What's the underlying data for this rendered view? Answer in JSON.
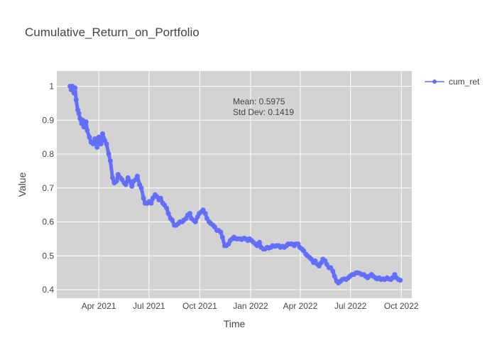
{
  "chart_data": {
    "type": "line",
    "title": "Cumulative_Return_on_Portfolio",
    "xlabel": "Time",
    "ylabel": "Value",
    "xlim": [
      "2021-01-15",
      "2022-10-20"
    ],
    "ylim": [
      0.375,
      1.045
    ],
    "x_ticks": [
      {
        "date": "2021-04-01",
        "label": "Apr 2021"
      },
      {
        "date": "2021-07-01",
        "label": "Jul 2021"
      },
      {
        "date": "2021-10-01",
        "label": "Oct 2021"
      },
      {
        "date": "2022-01-01",
        "label": "Jan 2022"
      },
      {
        "date": "2022-04-01",
        "label": "Apr 2022"
      },
      {
        "date": "2022-07-01",
        "label": "Jul 2022"
      },
      {
        "date": "2022-10-01",
        "label": "Oct 2022"
      }
    ],
    "y_ticks": [
      {
        "value": 0.4,
        "label": "0.4"
      },
      {
        "value": 0.5,
        "label": "0.5"
      },
      {
        "value": 0.6,
        "label": "0.6"
      },
      {
        "value": 0.7,
        "label": "0.7"
      },
      {
        "value": 0.8,
        "label": "0.8"
      },
      {
        "value": 0.9,
        "label": "0.9"
      },
      {
        "value": 1.0,
        "label": "1"
      }
    ],
    "grid": true,
    "legend_position": "top-right",
    "annotations": {
      "mean": "Mean: 0.5975",
      "std": "Std Dev: 0.1419"
    },
    "colors": {
      "series": "#636efa",
      "plot_bg": "#d3d3d3",
      "grid": "#ffffff"
    },
    "series": [
      {
        "name": "cum_ret",
        "x": [
          "2021-02-08",
          "2021-02-10",
          "2021-02-12",
          "2021-02-15",
          "2021-02-17",
          "2021-02-19",
          "2021-02-22",
          "2021-02-24",
          "2021-02-26",
          "2021-03-01",
          "2021-03-03",
          "2021-03-05",
          "2021-03-09",
          "2021-03-11",
          "2021-03-15",
          "2021-03-18",
          "2021-03-22",
          "2021-03-25",
          "2021-03-29",
          "2021-04-01",
          "2021-04-05",
          "2021-04-08",
          "2021-04-12",
          "2021-04-15",
          "2021-04-19",
          "2021-04-22",
          "2021-04-26",
          "2021-04-29",
          "2021-05-03",
          "2021-05-06",
          "2021-05-10",
          "2021-05-13",
          "2021-05-17",
          "2021-05-20",
          "2021-05-24",
          "2021-05-27",
          "2021-05-31",
          "2021-06-03",
          "2021-06-07",
          "2021-06-10",
          "2021-06-14",
          "2021-06-17",
          "2021-06-21",
          "2021-06-24",
          "2021-06-28",
          "2021-07-01",
          "2021-07-05",
          "2021-07-08",
          "2021-07-12",
          "2021-07-15",
          "2021-07-19",
          "2021-07-22",
          "2021-07-26",
          "2021-07-29",
          "2021-08-02",
          "2021-08-05",
          "2021-08-09",
          "2021-08-12",
          "2021-08-16",
          "2021-08-19",
          "2021-08-23",
          "2021-08-26",
          "2021-08-30",
          "2021-09-02",
          "2021-09-06",
          "2021-09-09",
          "2021-09-13",
          "2021-09-16",
          "2021-09-20",
          "2021-09-23",
          "2021-09-27",
          "2021-09-30",
          "2021-10-04",
          "2021-10-07",
          "2021-10-11",
          "2021-10-14",
          "2021-10-18",
          "2021-10-21",
          "2021-10-25",
          "2021-10-28",
          "2021-11-01",
          "2021-11-04",
          "2021-11-08",
          "2021-11-11",
          "2021-11-15",
          "2021-11-18",
          "2021-11-22",
          "2021-11-25",
          "2021-11-29",
          "2021-12-02",
          "2021-12-06",
          "2021-12-09",
          "2021-12-13",
          "2021-12-16",
          "2021-12-20",
          "2021-12-23",
          "2021-12-27",
          "2021-12-30",
          "2022-01-03",
          "2022-01-06",
          "2022-01-10",
          "2022-01-13",
          "2022-01-17",
          "2022-01-20",
          "2022-01-24",
          "2022-01-27",
          "2022-01-31",
          "2022-02-03",
          "2022-02-07",
          "2022-02-10",
          "2022-02-14",
          "2022-02-17",
          "2022-02-21",
          "2022-02-24",
          "2022-02-28",
          "2022-03-03",
          "2022-03-07",
          "2022-03-10",
          "2022-03-14",
          "2022-03-17",
          "2022-03-21",
          "2022-03-24",
          "2022-03-28",
          "2022-03-31",
          "2022-04-04",
          "2022-04-07",
          "2022-04-11",
          "2022-04-14",
          "2022-04-18",
          "2022-04-21",
          "2022-04-25",
          "2022-04-28",
          "2022-05-02",
          "2022-05-05",
          "2022-05-09",
          "2022-05-12",
          "2022-05-16",
          "2022-05-19",
          "2022-05-23",
          "2022-05-26",
          "2022-05-30",
          "2022-06-02",
          "2022-06-06",
          "2022-06-09",
          "2022-06-13",
          "2022-06-16",
          "2022-06-20",
          "2022-06-23",
          "2022-06-27",
          "2022-06-30",
          "2022-07-04",
          "2022-07-07",
          "2022-07-11",
          "2022-07-14",
          "2022-07-18",
          "2022-07-21",
          "2022-07-25",
          "2022-07-28",
          "2022-08-01",
          "2022-08-04",
          "2022-08-08",
          "2022-08-11",
          "2022-08-15",
          "2022-08-18",
          "2022-08-22",
          "2022-08-25",
          "2022-08-29",
          "2022-09-01",
          "2022-09-05",
          "2022-09-08",
          "2022-09-12",
          "2022-09-15",
          "2022-09-19",
          "2022-09-22",
          "2022-09-26",
          "2022-09-29"
        ],
        "y": [
          1.0,
          0.99,
          1.0,
          0.98,
          0.995,
          0.96,
          0.93,
          0.92,
          0.905,
          0.89,
          0.9,
          0.88,
          0.895,
          0.87,
          0.85,
          0.835,
          0.83,
          0.845,
          0.82,
          0.85,
          0.83,
          0.86,
          0.84,
          0.83,
          0.8,
          0.78,
          0.73,
          0.715,
          0.72,
          0.74,
          0.73,
          0.725,
          0.715,
          0.71,
          0.73,
          0.72,
          0.705,
          0.72,
          0.725,
          0.735,
          0.71,
          0.7,
          0.67,
          0.655,
          0.655,
          0.66,
          0.655,
          0.67,
          0.68,
          0.675,
          0.665,
          0.67,
          0.655,
          0.65,
          0.64,
          0.625,
          0.61,
          0.605,
          0.59,
          0.59,
          0.595,
          0.6,
          0.6,
          0.605,
          0.61,
          0.62,
          0.625,
          0.61,
          0.605,
          0.6,
          0.615,
          0.625,
          0.63,
          0.635,
          0.625,
          0.61,
          0.6,
          0.595,
          0.59,
          0.585,
          0.575,
          0.575,
          0.57,
          0.555,
          0.53,
          0.53,
          0.535,
          0.545,
          0.55,
          0.555,
          0.55,
          0.55,
          0.55,
          0.548,
          0.552,
          0.55,
          0.545,
          0.55,
          0.545,
          0.54,
          0.535,
          0.53,
          0.54,
          0.525,
          0.52,
          0.52,
          0.525,
          0.523,
          0.525,
          0.53,
          0.528,
          0.53,
          0.53,
          0.525,
          0.528,
          0.525,
          0.53,
          0.535,
          0.535,
          0.535,
          0.53,
          0.535,
          0.535,
          0.525,
          0.52,
          0.515,
          0.505,
          0.5,
          0.495,
          0.49,
          0.48,
          0.485,
          0.475,
          0.47,
          0.48,
          0.49,
          0.485,
          0.475,
          0.465,
          0.465,
          0.455,
          0.44,
          0.425,
          0.42,
          0.425,
          0.43,
          0.432,
          0.43,
          0.435,
          0.44,
          0.445,
          0.445,
          0.45,
          0.45,
          0.448,
          0.445,
          0.445,
          0.44,
          0.435,
          0.44,
          0.445,
          0.44,
          0.435,
          0.432,
          0.435,
          0.43,
          0.432,
          0.43,
          0.435,
          0.432,
          0.43,
          0.435,
          0.445,
          0.435,
          0.43,
          0.428
        ]
      }
    ]
  }
}
